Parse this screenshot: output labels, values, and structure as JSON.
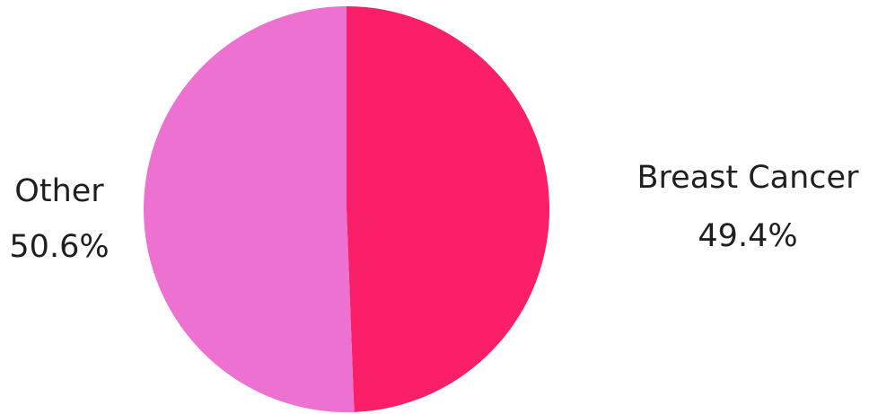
{
  "chart_data": {
    "type": "pie",
    "categories": [
      "Breast Cancer",
      "Other"
    ],
    "values": [
      49.4,
      50.6
    ],
    "value_labels": [
      "49.4%",
      "50.6%"
    ],
    "colors": [
      "#fa1f68",
      "#ec71d1"
    ]
  }
}
